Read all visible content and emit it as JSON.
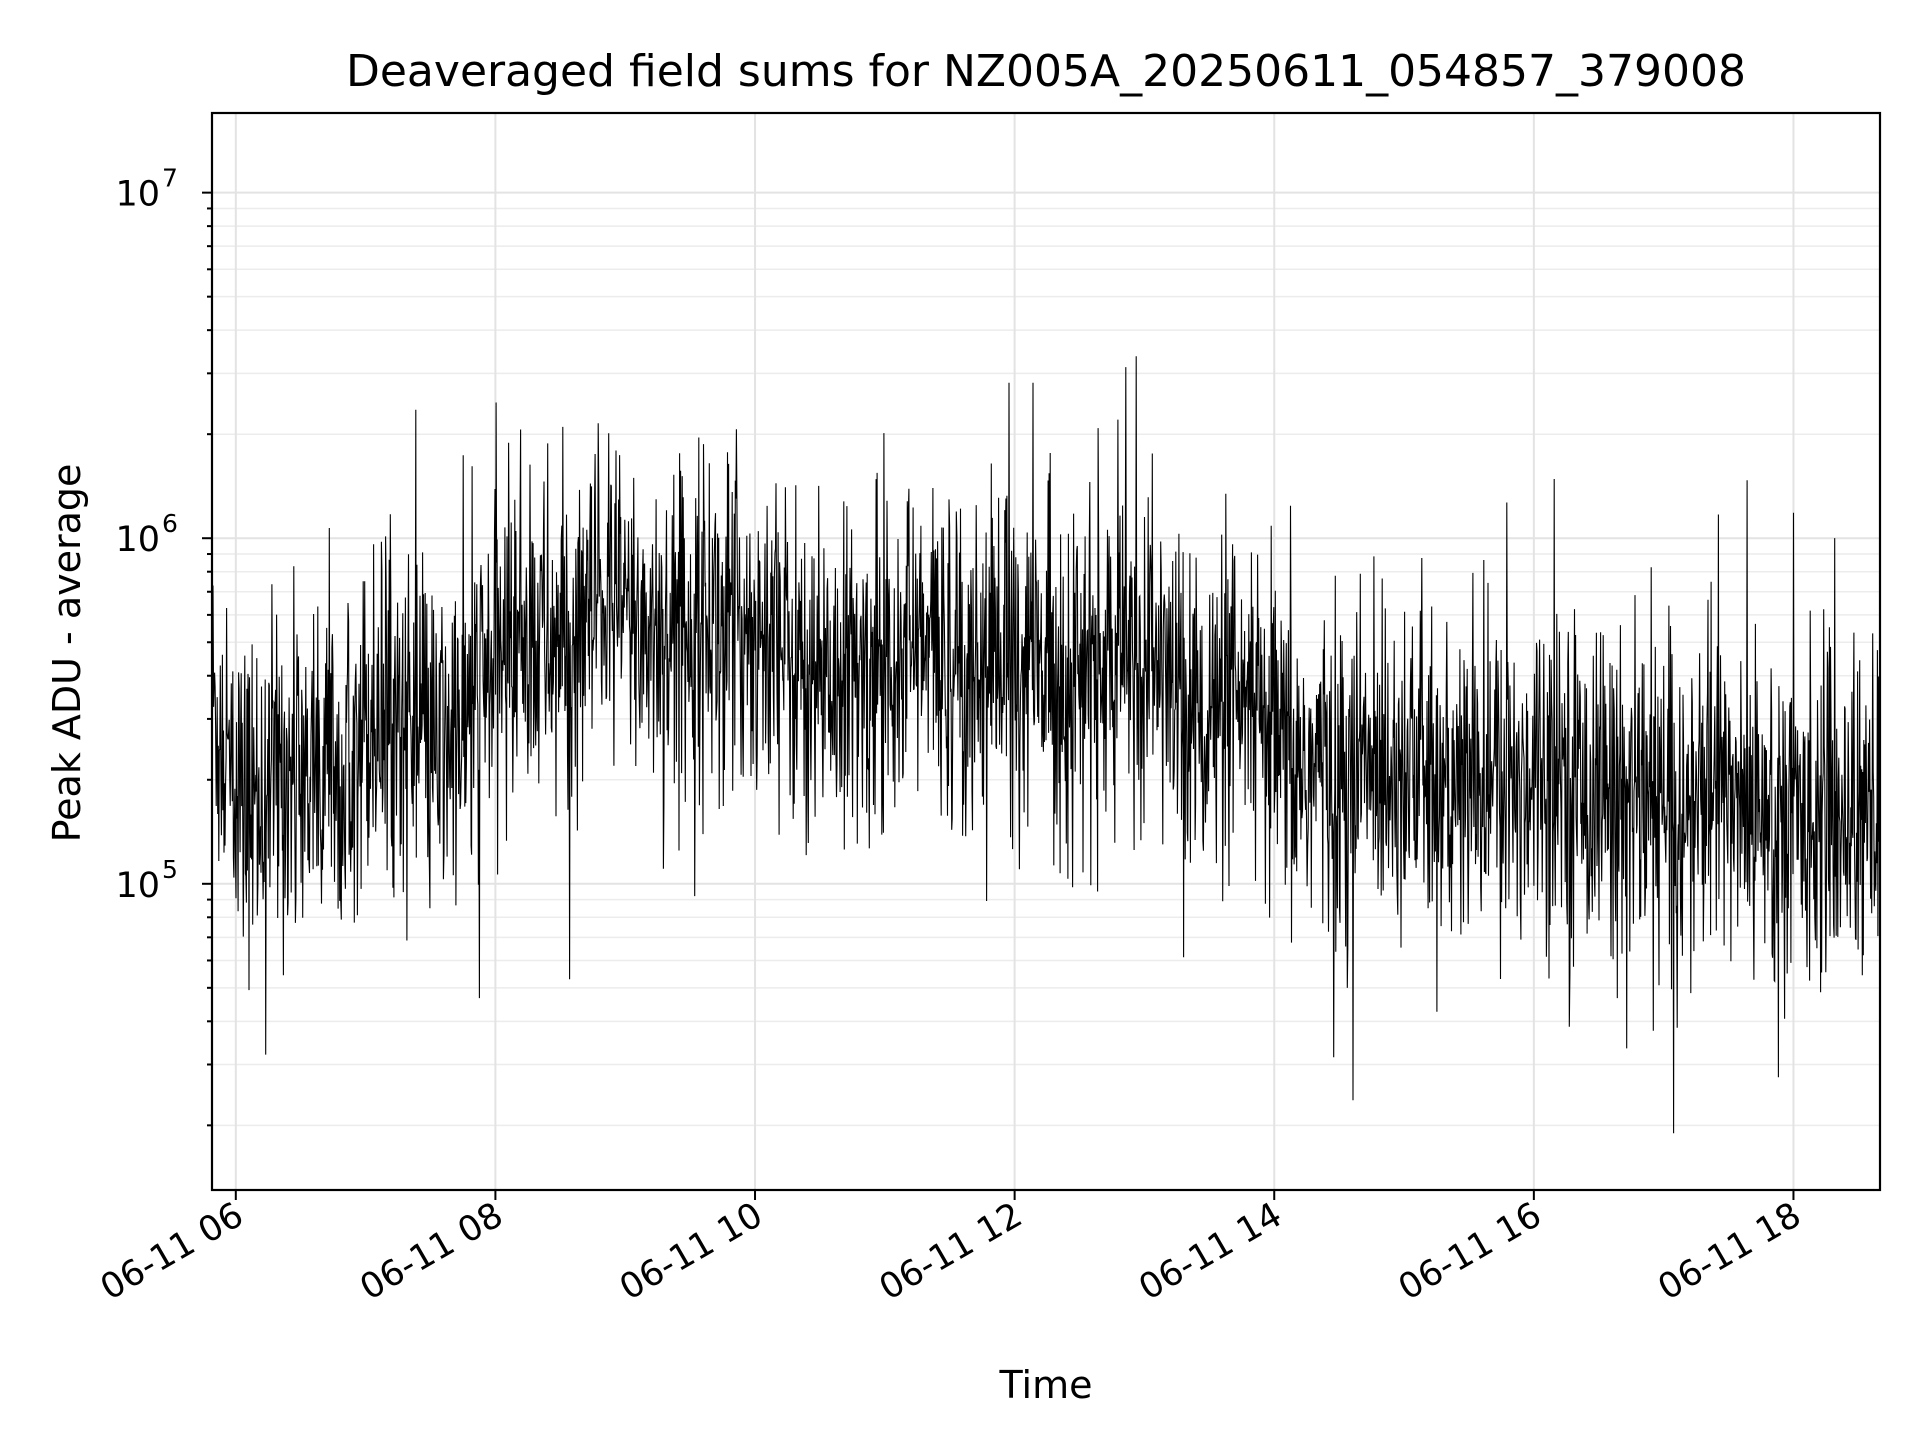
{
  "chart_data": {
    "type": "line",
    "title": "Deaveraged field sums for NZ005A_20250611_054857_379008",
    "xlabel": "Time",
    "ylabel": "Peak ADU - average",
    "x_range": [
      "2025-06-11T05:49:00",
      "2025-06-11T18:40:00"
    ],
    "ylim": [
      13000,
      17000000
    ],
    "yscale": "log",
    "x_ticks": [
      {
        "value": "2025-06-11T06:00:00",
        "label": "06-11 06"
      },
      {
        "value": "2025-06-11T08:00:00",
        "label": "06-11 08"
      },
      {
        "value": "2025-06-11T10:00:00",
        "label": "06-11 10"
      },
      {
        "value": "2025-06-11T12:00:00",
        "label": "06-11 12"
      },
      {
        "value": "2025-06-11T14:00:00",
        "label": "06-11 14"
      },
      {
        "value": "2025-06-11T16:00:00",
        "label": "06-11 16"
      },
      {
        "value": "2025-06-11T18:00:00",
        "label": "06-11 18"
      }
    ],
    "y_ticks": [
      {
        "value": 100000,
        "base": "10",
        "exp": "5"
      },
      {
        "value": 1000000,
        "base": "10",
        "exp": "6"
      },
      {
        "value": 10000000,
        "base": "10",
        "exp": "7"
      }
    ],
    "grid": true,
    "line_color": "#000000",
    "series": [
      {
        "x": [
          "2025-06-11T05:49:00",
          "2025-06-11T06:00:00",
          "2025-06-11T06:10:00",
          "2025-06-11T06:20:00",
          "2025-06-11T06:30:00",
          "2025-06-11T06:40:00",
          "2025-06-11T06:50:00",
          "2025-06-11T07:00:00",
          "2025-06-11T07:10:00",
          "2025-06-11T07:20:00",
          "2025-06-11T07:30:00",
          "2025-06-11T07:40:00",
          "2025-06-11T07:50:00",
          "2025-06-11T08:00:00",
          "2025-06-11T08:10:00",
          "2025-06-11T08:20:00",
          "2025-06-11T08:30:00",
          "2025-06-11T08:40:00",
          "2025-06-11T08:50:00",
          "2025-06-11T09:00:00",
          "2025-06-11T09:10:00",
          "2025-06-11T09:20:00",
          "2025-06-11T09:30:00",
          "2025-06-11T09:40:00",
          "2025-06-11T09:50:00",
          "2025-06-11T10:00:00",
          "2025-06-11T10:10:00",
          "2025-06-11T10:20:00",
          "2025-06-11T10:30:00",
          "2025-06-11T10:40:00",
          "2025-06-11T10:50:00",
          "2025-06-11T11:00:00",
          "2025-06-11T11:10:00",
          "2025-06-11T11:20:00",
          "2025-06-11T11:30:00",
          "2025-06-11T11:40:00",
          "2025-06-11T11:50:00",
          "2025-06-11T12:00:00",
          "2025-06-11T12:10:00",
          "2025-06-11T12:20:00",
          "2025-06-11T12:30:00",
          "2025-06-11T12:40:00",
          "2025-06-11T12:50:00",
          "2025-06-11T13:00:00",
          "2025-06-11T13:10:00",
          "2025-06-11T13:20:00",
          "2025-06-11T13:30:00",
          "2025-06-11T13:40:00",
          "2025-06-11T13:50:00",
          "2025-06-11T14:00:00",
          "2025-06-11T14:10:00",
          "2025-06-11T14:20:00",
          "2025-06-11T14:30:00",
          "2025-06-11T14:40:00",
          "2025-06-11T14:50:00",
          "2025-06-11T15:00:00",
          "2025-06-11T15:10:00",
          "2025-06-11T15:20:00",
          "2025-06-11T15:30:00",
          "2025-06-11T15:40:00",
          "2025-06-11T15:50:00",
          "2025-06-11T16:00:00",
          "2025-06-11T16:10:00",
          "2025-06-11T16:20:00",
          "2025-06-11T16:30:00",
          "2025-06-11T16:40:00",
          "2025-06-11T16:50:00",
          "2025-06-11T17:00:00",
          "2025-06-11T17:10:00",
          "2025-06-11T17:20:00",
          "2025-06-11T17:30:00",
          "2025-06-11T17:40:00",
          "2025-06-11T17:50:00",
          "2025-06-11T18:00:00",
          "2025-06-11T18:10:00",
          "2025-06-11T18:20:00",
          "2025-06-11T18:30:00",
          "2025-06-11T18:40:00"
        ],
        "y": [
          350000,
          160000,
          180000,
          210000,
          200000,
          230000,
          290000,
          300000,
          330000,
          290000,
          230000,
          260000,
          310000,
          450000,
          550000,
          520000,
          480000,
          500000,
          650000,
          600000,
          550000,
          530000,
          580000,
          600000,
          560000,
          560000,
          480000,
          430000,
          400000,
          380000,
          370000,
          520000,
          500000,
          460000,
          480000,
          430000,
          460000,
          470000,
          440000,
          410000,
          400000,
          420000,
          430000,
          470000,
          400000,
          320000,
          300000,
          300000,
          290000,
          250000,
          210000,
          220000,
          190000,
          210000,
          230000,
          240000,
          200000,
          180000,
          190000,
          200000,
          180000,
          230000,
          230000,
          190000,
          190000,
          180000,
          170000,
          160000,
          150000,
          190000,
          180000,
          190000,
          160000,
          150000,
          170000,
          160000,
          160000,
          150000
        ]
      }
    ]
  }
}
